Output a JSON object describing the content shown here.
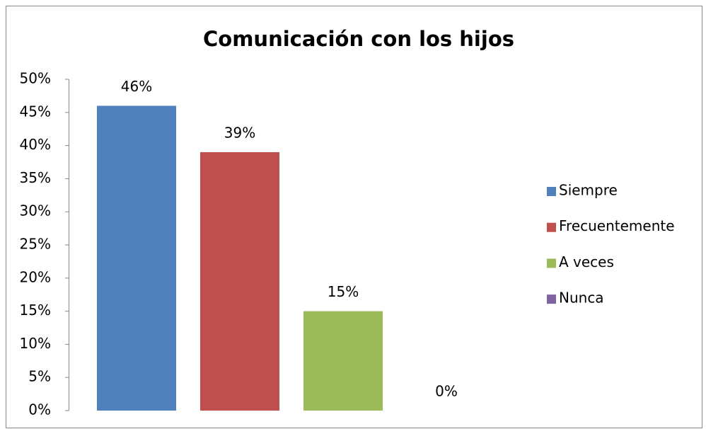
{
  "chart_data": {
    "type": "bar",
    "title": "Comunicación con los hijos",
    "series": [
      {
        "name": "Siempre",
        "color": "#4f81bd",
        "values": [
          46
        ],
        "value_labels": [
          "46%"
        ]
      },
      {
        "name": "Frecuentemente",
        "color": "#c0504d",
        "values": [
          39
        ],
        "value_labels": [
          "39%"
        ]
      },
      {
        "name": "A veces",
        "color": "#9bbb59",
        "values": [
          15
        ],
        "value_labels": [
          "15%"
        ]
      },
      {
        "name": "Nunca",
        "color": "#8064a2",
        "values": [
          0
        ],
        "value_labels": [
          "0%"
        ]
      }
    ],
    "ylim": [
      0,
      50
    ],
    "yticks": [
      {
        "value": 0,
        "label": "0%"
      },
      {
        "value": 5,
        "label": "5%"
      },
      {
        "value": 10,
        "label": "10%"
      },
      {
        "value": 15,
        "label": "15%"
      },
      {
        "value": 20,
        "label": "20%"
      },
      {
        "value": 25,
        "label": "25%"
      },
      {
        "value": 30,
        "label": "30%"
      },
      {
        "value": 35,
        "label": "35%"
      },
      {
        "value": 40,
        "label": "40%"
      },
      {
        "value": 45,
        "label": "45%"
      },
      {
        "value": 50,
        "label": "50%"
      }
    ],
    "grid": false,
    "legend": "right"
  }
}
